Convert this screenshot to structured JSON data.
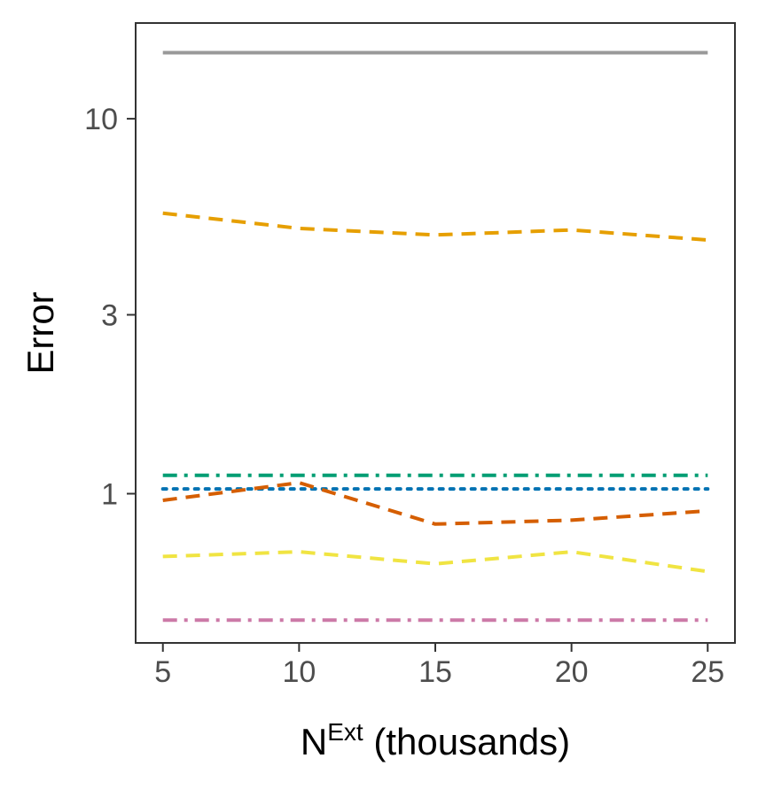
{
  "chart_data": {
    "type": "line",
    "title": "",
    "xlabel": {
      "base": "N",
      "superscript": "Ext",
      "suffix": " (thousands)"
    },
    "ylabel": "Error",
    "x": [
      5,
      10,
      15,
      20,
      25
    ],
    "xticks": [
      5,
      10,
      15,
      20,
      25
    ],
    "xtick_labels": [
      "5",
      "10",
      "15",
      "20",
      "25"
    ],
    "xlim": [
      4,
      26
    ],
    "yscale": "log",
    "yticks": [
      1,
      3,
      10
    ],
    "ytick_labels": [
      "1",
      "3",
      "10"
    ],
    "ylim": [
      0.4,
      18
    ],
    "grid": false,
    "series": [
      {
        "color": "#999999",
        "linestyle": "solid",
        "values": [
          15,
          15,
          15,
          15,
          15
        ]
      },
      {
        "color": "#E69F00",
        "linestyle": "dashed",
        "values": [
          5.6,
          5.1,
          4.9,
          5.05,
          4.75
        ]
      },
      {
        "color": "#009E73",
        "linestyle": "dashdot",
        "values": [
          1.12,
          1.12,
          1.12,
          1.12,
          1.12
        ]
      },
      {
        "color": "#0072B2",
        "linestyle": "dotted",
        "values": [
          1.03,
          1.03,
          1.03,
          1.03,
          1.03
        ]
      },
      {
        "color": "#D55E00",
        "linestyle": "dashed",
        "values": [
          0.96,
          1.07,
          0.83,
          0.85,
          0.9
        ]
      },
      {
        "color": "#F0E442",
        "linestyle": "dashed",
        "values": [
          0.68,
          0.7,
          0.65,
          0.7,
          0.62
        ]
      },
      {
        "color": "#CC79A7",
        "linestyle": "dashdot",
        "values": [
          0.46,
          0.46,
          0.46,
          0.46,
          0.46
        ]
      }
    ]
  }
}
